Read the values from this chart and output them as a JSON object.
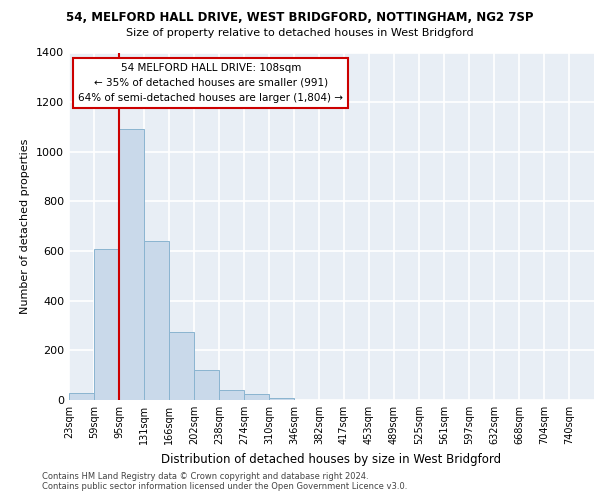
{
  "title_line1": "54, MELFORD HALL DRIVE, WEST BRIDGFORD, NOTTINGHAM, NG2 7SP",
  "title_line2": "Size of property relative to detached houses in West Bridgford",
  "xlabel": "Distribution of detached houses by size in West Bridgford",
  "ylabel": "Number of detached properties",
  "footer_line1": "Contains HM Land Registry data © Crown copyright and database right 2024.",
  "footer_line2": "Contains public sector information licensed under the Open Government Licence v3.0.",
  "bin_labels": [
    "23sqm",
    "59sqm",
    "95sqm",
    "131sqm",
    "166sqm",
    "202sqm",
    "238sqm",
    "274sqm",
    "310sqm",
    "346sqm",
    "382sqm",
    "417sqm",
    "453sqm",
    "489sqm",
    "525sqm",
    "561sqm",
    "597sqm",
    "632sqm",
    "668sqm",
    "704sqm",
    "740sqm"
  ],
  "bar_values": [
    30,
    610,
    1090,
    640,
    275,
    120,
    40,
    25,
    10,
    0,
    0,
    0,
    0,
    0,
    0,
    0,
    0,
    0,
    0,
    0,
    0
  ],
  "bar_color": "#c9d9ea",
  "bar_edge_color": "#8ab4d0",
  "background_color": "#e8eef5",
  "grid_color": "#ffffff",
  "annotation_text": "54 MELFORD HALL DRIVE: 108sqm\n← 35% of detached houses are smaller (991)\n64% of semi-detached houses are larger (1,804) →",
  "annotation_box_color": "#ffffff",
  "annotation_border_color": "#cc0000",
  "vline_x_bin": 2,
  "vline_color": "#cc0000",
  "ylim": [
    0,
    1400
  ],
  "yticks": [
    0,
    200,
    400,
    600,
    800,
    1000,
    1200,
    1400
  ]
}
